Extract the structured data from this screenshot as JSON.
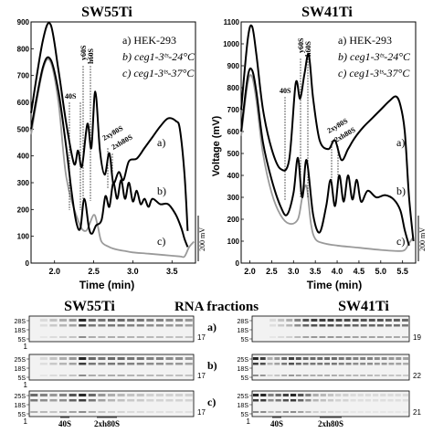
{
  "colors": {
    "ax": "#000000",
    "trace_a": "#000000",
    "trace_b": "#000000",
    "trace_c": "#9a9a9a",
    "band": "#111111",
    "gel_bg": "#f2f2f2",
    "grid": "#9a9a9a"
  },
  "chart_data": [
    {
      "type": "line",
      "title": "SW55Ti",
      "xlabel": "Time (min)",
      "ylabel": "",
      "xlim": [
        1.7,
        3.8
      ],
      "ylim": [
        0,
        900
      ],
      "xticks": [
        "2.0",
        "2.5",
        "3.0",
        "3.5"
      ],
      "yticks": [
        "0",
        "100",
        "200",
        "300",
        "400",
        "500",
        "600",
        "700",
        "800",
        "900"
      ],
      "grid": false,
      "legend_text": [
        "a) HEK-293",
        "b) ceg1-3ᵗˢ-24°C",
        "c) ceg1-3ᵗˢ-37°C"
      ],
      "legend_position": "top-right",
      "series": [
        {
          "name": "a)",
          "x": [
            1.7,
            1.85,
            1.95,
            2.05,
            2.15,
            2.25,
            2.3,
            2.35,
            2.42,
            2.47,
            2.52,
            2.58,
            2.64,
            2.7,
            2.75,
            2.82,
            2.88,
            2.95,
            3.05,
            3.15,
            3.25,
            3.35,
            3.45,
            3.55,
            3.6,
            3.66,
            3.7
          ],
          "y": [
            560,
            830,
            890,
            720,
            520,
            370,
            420,
            360,
            520,
            430,
            640,
            420,
            330,
            410,
            300,
            340,
            310,
            380,
            390,
            430,
            470,
            510,
            540,
            530,
            500,
            330,
            120
          ]
        },
        {
          "name": "b)",
          "x": [
            1.7,
            1.85,
            1.95,
            2.05,
            2.15,
            2.22,
            2.28,
            2.33,
            2.38,
            2.44,
            2.48,
            2.53,
            2.6,
            2.65,
            2.7,
            2.75,
            2.8,
            2.85,
            2.9,
            2.95,
            3.0,
            3.05,
            3.1,
            3.15,
            3.2,
            3.25,
            3.35,
            3.45,
            3.55,
            3.62,
            3.66,
            3.7
          ],
          "y": [
            500,
            730,
            760,
            640,
            430,
            260,
            150,
            130,
            240,
            130,
            110,
            140,
            160,
            250,
            210,
            300,
            240,
            310,
            240,
            300,
            230,
            270,
            220,
            240,
            210,
            240,
            220,
            220,
            180,
            130,
            90,
            60
          ]
        },
        {
          "name": "c)",
          "x": [
            1.7,
            1.85,
            1.95,
            2.05,
            2.15,
            2.3,
            2.4,
            2.5,
            2.55,
            2.6,
            2.7,
            2.8,
            2.9,
            3.0,
            3.2,
            3.4,
            3.6,
            3.66,
            3.72,
            3.78
          ],
          "y": [
            480,
            720,
            750,
            600,
            320,
            160,
            120,
            180,
            140,
            80,
            60,
            50,
            45,
            40,
            35,
            30,
            25,
            25,
            60,
            80
          ]
        }
      ],
      "annotations": [
        "40S",
        "y60S",
        "h60S",
        "2xy80S",
        "2xh80S",
        "a)",
        "b)",
        "c)"
      ],
      "scale_bar": "200 mV"
    },
    {
      "type": "line",
      "title": "SW41Ti",
      "xlabel": "Time (min)",
      "ylabel": "Voltage (mV)",
      "xlim": [
        1.8,
        5.8
      ],
      "ylim": [
        0,
        1100
      ],
      "xticks": [
        "2.0",
        "2.5",
        "3.0",
        "3.5",
        "4.0",
        "4.5",
        "5.0",
        "5.5"
      ],
      "yticks": [
        "0",
        "100",
        "200",
        "300",
        "400",
        "500",
        "600",
        "700",
        "800",
        "900",
        "1000",
        "1100"
      ],
      "grid": false,
      "legend_text": [
        "a) HEK-293",
        "b) ceg1-3ᵗˢ-24°C",
        "c) ceg1-3ᵗˢ-37°C"
      ],
      "legend_position": "top-right",
      "series": [
        {
          "name": "a)",
          "x": [
            1.8,
            1.95,
            2.05,
            2.15,
            2.3,
            2.5,
            2.7,
            2.9,
            3.05,
            3.15,
            3.25,
            3.35,
            3.45,
            3.6,
            3.8,
            3.95,
            4.1,
            4.25,
            4.4,
            4.6,
            4.8,
            5.0,
            5.2,
            5.35,
            5.45,
            5.55,
            5.65,
            5.75
          ],
          "y": [
            700,
            1020,
            1080,
            950,
            700,
            520,
            430,
            470,
            820,
            750,
            860,
            950,
            750,
            560,
            520,
            560,
            470,
            520,
            570,
            620,
            660,
            700,
            740,
            760,
            720,
            600,
            300,
            100
          ]
        },
        {
          "name": "b)",
          "x": [
            1.8,
            1.95,
            2.05,
            2.15,
            2.3,
            2.5,
            2.7,
            2.85,
            3.0,
            3.1,
            3.2,
            3.3,
            3.45,
            3.6,
            3.75,
            3.85,
            3.95,
            4.05,
            4.15,
            4.25,
            4.35,
            4.45,
            4.55,
            4.7,
            4.9,
            5.1,
            5.3,
            5.45,
            5.55,
            5.65
          ],
          "y": [
            600,
            850,
            880,
            780,
            550,
            380,
            260,
            220,
            320,
            480,
            300,
            470,
            220,
            140,
            260,
            380,
            260,
            400,
            280,
            400,
            290,
            380,
            280,
            330,
            300,
            310,
            290,
            240,
            150,
            80
          ]
        },
        {
          "name": "c)",
          "x": [
            1.8,
            1.95,
            2.05,
            2.15,
            2.3,
            2.5,
            2.7,
            2.9,
            3.1,
            3.2,
            3.3,
            3.4,
            3.5,
            3.7,
            4.0,
            4.5,
            5.0,
            5.4,
            5.55,
            5.65,
            5.75
          ],
          "y": [
            580,
            820,
            850,
            740,
            500,
            320,
            220,
            180,
            200,
            300,
            350,
            180,
            110,
            90,
            80,
            70,
            60,
            55,
            60,
            90,
            120
          ]
        }
      ],
      "annotations": [
        "40S",
        "y60S",
        "h60S",
        "2xy80S",
        "2xh80S",
        "a)",
        "b)",
        "c)"
      ],
      "scale_bar": "200 mV"
    }
  ],
  "gels": {
    "center_title": "RNA fractions",
    "left": {
      "title": "SW55Ti",
      "panels": [
        {
          "labels": [
            "28S",
            "18S",
            "5S"
          ],
          "first": "1",
          "last": "17",
          "bands": [
            0.0,
            0.1,
            0.2,
            0.3,
            0.4,
            0.9,
            0.6,
            0.55,
            0.6,
            0.6,
            0.55,
            0.55,
            0.5,
            0.5,
            0.45,
            0.45,
            0.4
          ]
        },
        {
          "labels": [
            "25S",
            "18S",
            "5S"
          ],
          "first": "1",
          "last": "17",
          "bands": [
            0.0,
            0.1,
            0.2,
            0.3,
            0.4,
            0.9,
            0.6,
            0.55,
            0.6,
            0.6,
            0.55,
            0.55,
            0.5,
            0.5,
            0.45,
            0.45,
            0.4
          ]
        },
        {
          "labels": [
            "25S",
            "18S",
            "5S"
          ],
          "first": "1",
          "last": "17",
          "bands": [
            0.6,
            0.5,
            0.4,
            0.5,
            0.7,
            0.9,
            0.6,
            0.4,
            0.3,
            0.25,
            0.2,
            0.2,
            0.15,
            0.15,
            0.15,
            0.15,
            0.15
          ]
        }
      ],
      "markers": [
        "40S",
        "2xh80S"
      ]
    },
    "right": {
      "title": "SW41Ti",
      "rows": [
        "a)",
        "b)",
        "c)"
      ],
      "panels": [
        {
          "labels": [
            "28S",
            "18S",
            "5S"
          ],
          "first": "",
          "last": "19",
          "bands": [
            0.0,
            0.0,
            0.1,
            0.2,
            0.3,
            0.5,
            0.7,
            0.8,
            0.8,
            0.8,
            0.75,
            0.75,
            0.7,
            0.7,
            0.7,
            0.7,
            0.65,
            0.65,
            0.6
          ]
        },
        {
          "labels": [
            "25S",
            "18S",
            "5S"
          ],
          "first": "",
          "last": "22",
          "bands": [
            0.9,
            0.8,
            0.3,
            0.4,
            0.6,
            0.8,
            0.7,
            0.6,
            0.6,
            0.6,
            0.6,
            0.6,
            0.55,
            0.55,
            0.5,
            0.5,
            0.5,
            0.45,
            0.45,
            0.4,
            0.4,
            0.35
          ]
        },
        {
          "labels": [
            "25S",
            "18S",
            "5S"
          ],
          "first": "1",
          "last": "21",
          "bands": [
            0.9,
            0.9,
            0.5,
            0.6,
            0.8,
            0.9,
            0.7,
            0.5,
            0.3,
            0.25,
            0.2,
            0.15,
            0.15,
            0.1,
            0.1,
            0.1,
            0.1,
            0.1,
            0.1,
            0.1,
            0.1
          ]
        }
      ],
      "markers": [
        "40S",
        "2xh80S"
      ]
    }
  }
}
